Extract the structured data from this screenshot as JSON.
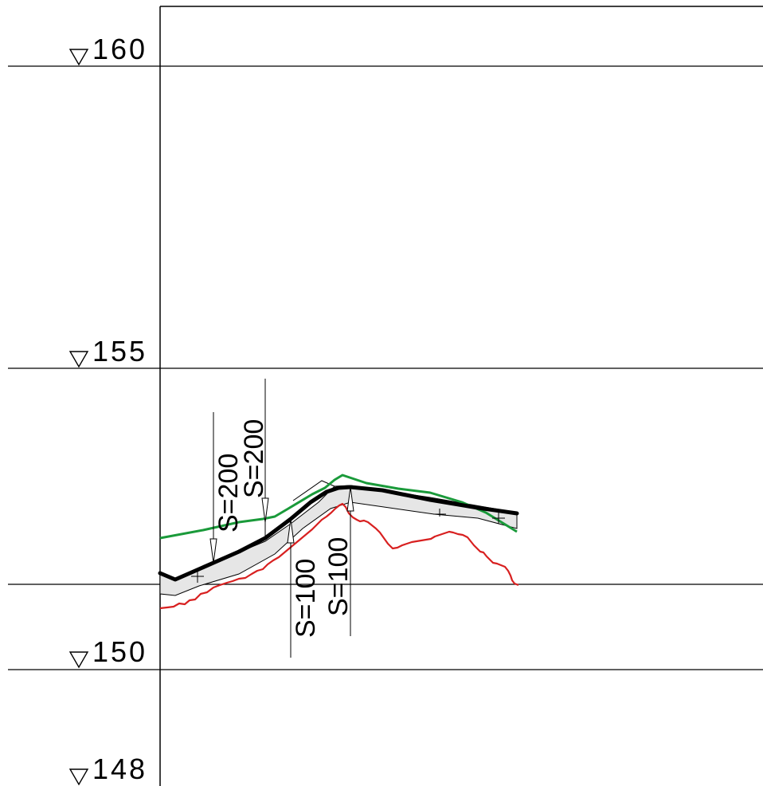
{
  "elevation_labels": [
    {
      "value": "160"
    },
    {
      "value": "155"
    },
    {
      "value": "150"
    },
    {
      "value": "148"
    }
  ],
  "curve_labels": [
    {
      "text": "S=200"
    },
    {
      "text": "S=200"
    },
    {
      "text": "S=100"
    },
    {
      "text": "S=100"
    }
  ],
  "colors": {
    "design_line": "#000000",
    "green_line": "#1a9a3a",
    "ground_line": "#d82020",
    "band_fill": "#e6e6e6",
    "grid": "#000000"
  }
}
